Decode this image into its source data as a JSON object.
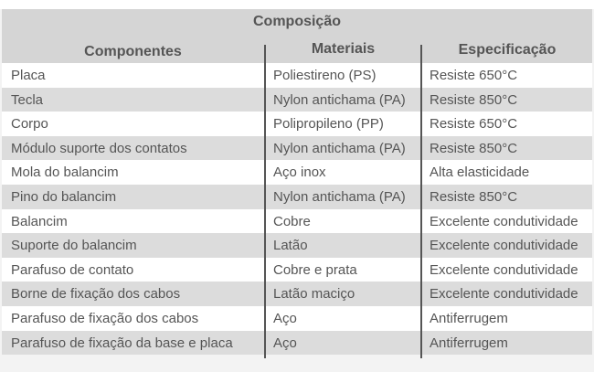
{
  "table": {
    "title": "Composição",
    "headers": [
      "Componentes",
      "Materiais",
      "Especificação"
    ],
    "rows": [
      [
        "Placa",
        "Poliestireno (PS)",
        "Resiste 650°C"
      ],
      [
        "Tecla",
        "Nylon antichama (PA)",
        "Resiste 850°C"
      ],
      [
        "Corpo",
        "Polipropileno (PP)",
        "Resiste 650°C"
      ],
      [
        "Módulo suporte dos contatos",
        "Nylon antichama (PA)",
        "Resiste 850°C"
      ],
      [
        "Mola do balancim",
        "Aço inox",
        "Alta elasticidade"
      ],
      [
        "Pino do balancim",
        "Nylon antichama (PA)",
        "Resiste 850°C"
      ],
      [
        "Balancim",
        "Cobre",
        "Excelente condutividade"
      ],
      [
        "Suporte do balancim",
        "Latão",
        "Excelente condutividade"
      ],
      [
        "Parafuso de contato",
        "Cobre e prata",
        "Excelente condutividade"
      ],
      [
        "Borne de fixação dos cabos",
        "Latão maciço",
        "Excelente condutividade"
      ],
      [
        "Parafuso de fixação dos cabos",
        "Aço",
        "Antiferrugem"
      ],
      [
        "Parafuso de fixação da base e placa",
        "Aço",
        "Antiferrugem"
      ]
    ]
  }
}
